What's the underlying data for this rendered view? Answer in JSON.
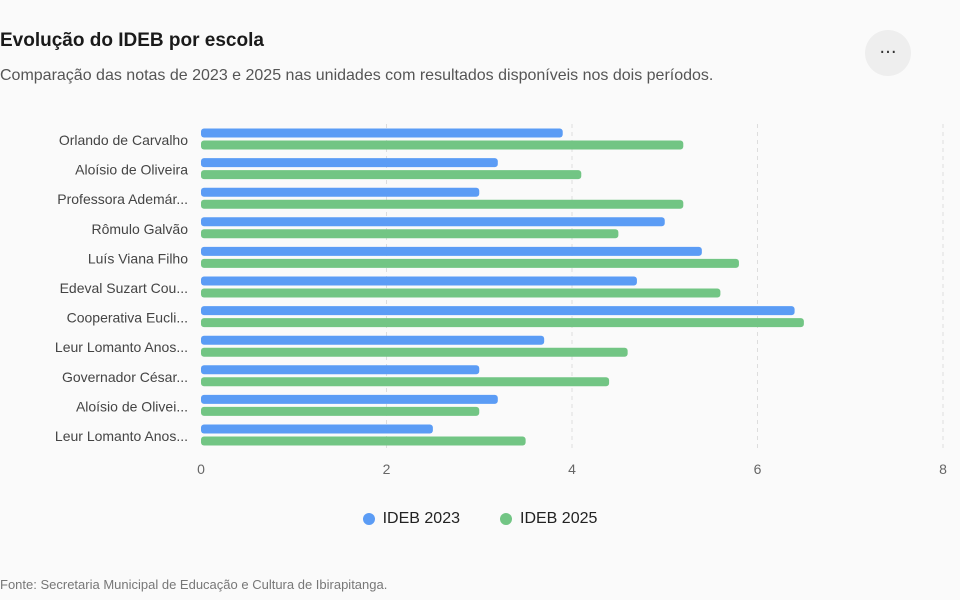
{
  "header": {
    "title": "Evolução do IDEB por escola",
    "subtitle": "Comparação das notas de 2023 e 2025 nas unidades com resultados disponíveis nos dois períodos.",
    "menu_icon": "···"
  },
  "footer": {
    "source": "Fonte: Secretaria Municipal de Educação e Cultura de Ibirapitanga."
  },
  "colors": {
    "ideb_2023": "#5b9cf5",
    "ideb_2025": "#72c584",
    "grid": "#dddddd",
    "axis_text": "#666666",
    "label_text": "#444444"
  },
  "chart_data": {
    "type": "bar",
    "orientation": "horizontal",
    "categories": [
      "Orlando de Carvalho",
      "Aloísio de Oliveira",
      "Professora Ademár...",
      "Rômulo Galvão",
      "Luís Viana Filho",
      "Edeval Suzart Cou...",
      "Cooperativa Eucli...",
      "Leur Lomanto Anos...",
      "Governador César...",
      "Aloísio de Olivei...",
      "Leur Lomanto Anos..."
    ],
    "series": [
      {
        "name": "IDEB 2023",
        "values": [
          3.9,
          3.2,
          3.0,
          5.0,
          5.4,
          4.7,
          6.4,
          3.7,
          3.0,
          3.2,
          2.5
        ]
      },
      {
        "name": "IDEB 2025",
        "values": [
          5.2,
          4.1,
          5.2,
          4.5,
          5.8,
          5.6,
          6.5,
          4.6,
          4.4,
          3.0,
          3.5
        ]
      }
    ],
    "xlim": [
      0,
      8
    ],
    "xticks": [
      "0",
      "2",
      "4",
      "6",
      "8"
    ],
    "grid": true,
    "legend_position": "bottom-center"
  }
}
